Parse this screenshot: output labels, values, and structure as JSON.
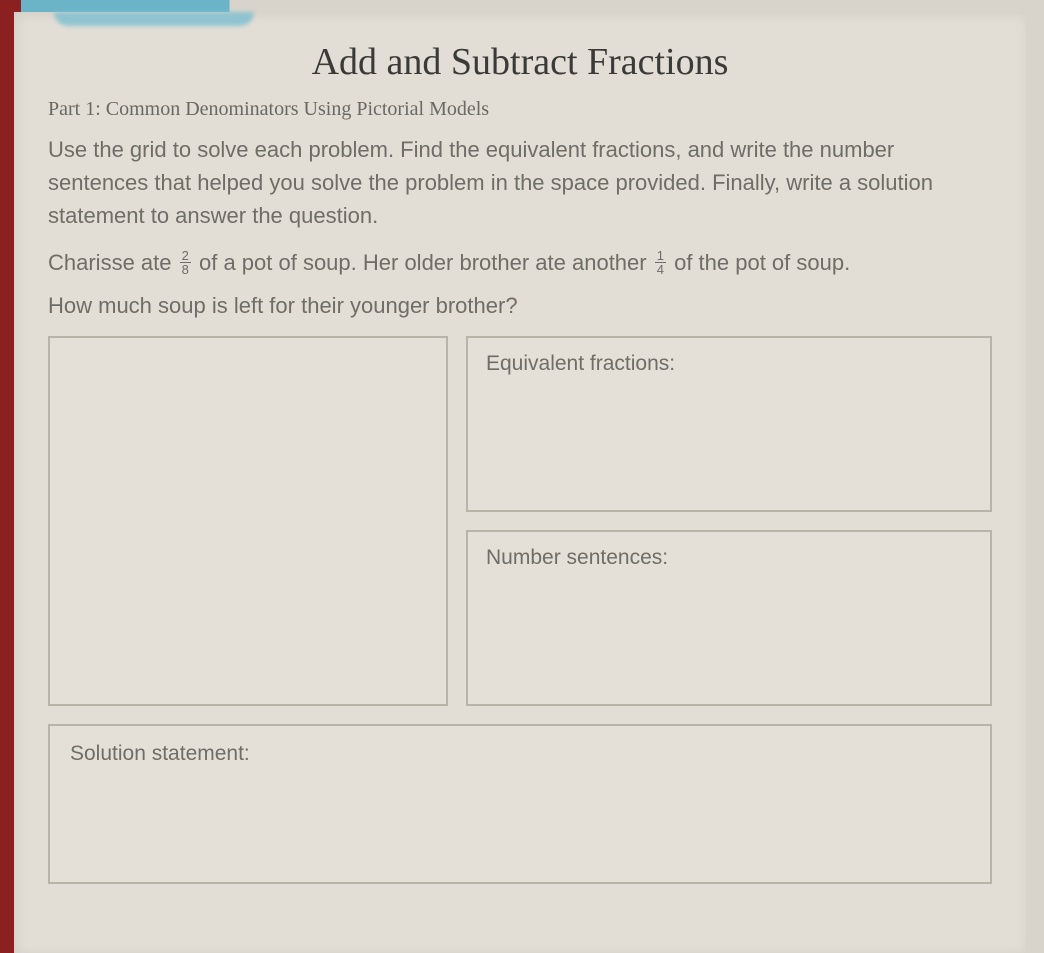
{
  "title": "Add and Subtract Fractions",
  "part_label": "Part 1: Common Denominators Using Pictorial Models",
  "instructions": "Use the grid to solve each problem. Find the equivalent fractions, and write the number sentences that helped you solve the problem in the space provided. Finally, write a solution statement to answer the question.",
  "problem": {
    "prefix": "Charisse ate ",
    "fraction1": {
      "numerator": "2",
      "denominator": "8"
    },
    "mid": " of a pot of soup. Her older brother ate another ",
    "fraction2": {
      "numerator": "1",
      "denominator": "4"
    },
    "suffix": " of the pot of soup."
  },
  "question": "How much soup is left for their younger brother?",
  "labels": {
    "equivalent_fractions": "Equivalent fractions:",
    "number_sentences": "Number sentences:",
    "solution_statement": "Solution statement:"
  },
  "style": {
    "page_bg": "#e2ded6",
    "body_bg": "#d8d4cc",
    "border_color": "#b8b4aa",
    "text_color": "#6f6d66",
    "title_color": "#3a3a38",
    "title_fontsize": 38,
    "part_fontsize": 20,
    "body_fontsize": 22,
    "label_fontsize": 21
  }
}
